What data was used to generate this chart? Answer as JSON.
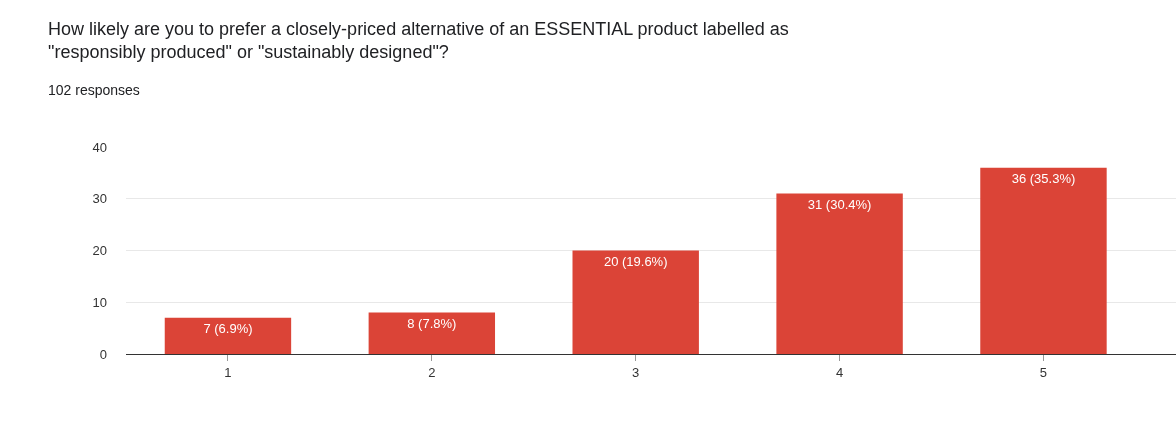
{
  "chart_data": {
    "type": "bar",
    "title": "How likely are you to prefer a closely-priced alternative of an ESSENTIAL product labelled as\n\"responsibly produced\" or \"sustainably designed\"?",
    "subtitle": "102 responses",
    "categories": [
      "1",
      "2",
      "3",
      "4",
      "5"
    ],
    "values": [
      7,
      8,
      20,
      31,
      36
    ],
    "value_labels": [
      "7 (6.9%)",
      "8 (7.8%)",
      "20 (19.6%)",
      "31 (30.4%)",
      "36 (35.3%)"
    ],
    "color": "#db4437",
    "ylim": [
      0,
      40
    ],
    "yticks": [
      0,
      10,
      20,
      30,
      40
    ],
    "grid": "y"
  }
}
